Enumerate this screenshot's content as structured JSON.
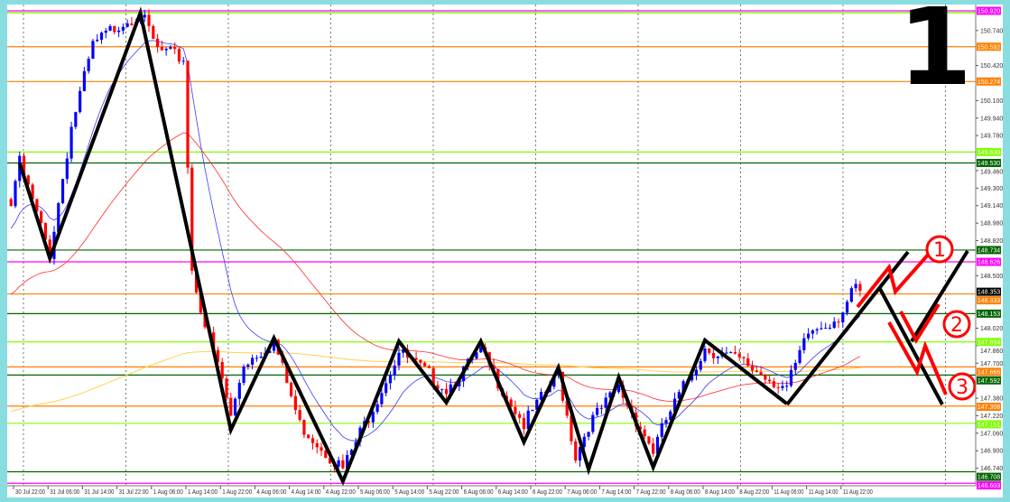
{
  "chart_data": {
    "type": "candlestick",
    "timeframe_label": "1",
    "colors": {
      "bull": "#0000ff",
      "bear": "#ff0000",
      "fast_ma": "#3a3aff",
      "slow_ma": "#ff2a2a",
      "long_ma": "#ffd24a",
      "zigzag": "#000000",
      "annotation": "#ff0000"
    },
    "ylim": [
      146.603,
      150.92
    ],
    "y_ticks": [
      "150.740",
      "150.420",
      "150.100",
      "149.940",
      "149.780",
      "149.460",
      "149.300",
      "149.140",
      "148.980",
      "148.820",
      "148.500",
      "148.020",
      "147.860",
      "147.700",
      "147.380",
      "147.220",
      "147.060",
      "146.900",
      "146.740"
    ],
    "x_ticks": [
      "30 Jul 22:00",
      "31 Jul 06:00",
      "31 Jul 14:00",
      "31 Jul 22:00",
      "1 Aug 06:00",
      "1 Aug 14:00",
      "1 Aug 22:00",
      "4 Aug 06:00",
      "4 Aug 14:00",
      "4 Aug 22:00",
      "5 Aug 06:00",
      "5 Aug 14:00",
      "5 Aug 22:00",
      "6 Aug 06:00",
      "6 Aug 14:00",
      "6 Aug 22:00",
      "7 Aug 06:00",
      "7 Aug 14:00",
      "7 Aug 22:00",
      "8 Aug 06:00",
      "8 Aug 14:00",
      "8 Aug 22:00",
      "11 Aug 06:00",
      "11 Aug 14:00",
      "11 Aug 22:00"
    ],
    "levels": [
      {
        "price": 150.92,
        "label": "150.920",
        "color": "#ff00ff"
      },
      {
        "price": 150.592,
        "label": "150.592",
        "color": "#ff8000"
      },
      {
        "price": 150.274,
        "label": "150.274",
        "color": "#ff8000"
      },
      {
        "price": 149.63,
        "label": "149.630",
        "color": "#80ff00"
      },
      {
        "price": 149.53,
        "label": "149.530",
        "color": "#006400"
      },
      {
        "price": 148.734,
        "label": "148.734",
        "color": "#006400"
      },
      {
        "price": 148.626,
        "label": "148.626",
        "color": "#ff00ff"
      },
      {
        "price": 148.333,
        "label": "148.333",
        "color": "#ff8000"
      },
      {
        "price": 148.153,
        "label": "148.153",
        "color": "#006400"
      },
      {
        "price": 147.894,
        "label": "147.894",
        "color": "#80ff00"
      },
      {
        "price": 147.666,
        "label": "147.666",
        "color": "#ff8000"
      },
      {
        "price": 147.592,
        "label": "147.592",
        "color": "#006400"
      },
      {
        "price": 147.308,
        "label": "147.308",
        "color": "#ff8000"
      },
      {
        "price": 147.151,
        "label": "147.151",
        "color": "#80ff00"
      },
      {
        "price": 146.708,
        "label": "146.708",
        "color": "#006400"
      },
      {
        "price": 146.603,
        "label": "146.603",
        "color": "#ff00ff"
      }
    ],
    "current_price": {
      "price": 148.353,
      "label": "148.353",
      "color": "#000000"
    },
    "price_path": [
      [
        "30 Jul 21:00",
        149.2
      ],
      [
        "30 Jul 23:00",
        149.53
      ],
      [
        "31 Jul 06:00",
        148.7
      ],
      [
        "31 Jul 11:00",
        149.86
      ],
      [
        "31 Jul 16:00",
        150.6
      ],
      [
        "31 Jul 22:00",
        150.8
      ],
      [
        "1 Aug 03:00",
        150.9
      ],
      [
        "1 Aug 07:00",
        150.56
      ],
      [
        "1 Aug 13:00",
        150.48
      ],
      [
        "1 Aug 15:00",
        148.55
      ],
      [
        "1 Aug 18:00",
        148.05
      ],
      [
        "1 Aug 22:00",
        147.55
      ],
      [
        "4 Aug 00:00",
        147.2
      ],
      [
        "4 Aug 03:00",
        147.7
      ],
      [
        "4 Aug 10:00",
        147.9
      ],
      [
        "4 Aug 16:00",
        147.14
      ],
      [
        "5 Aug 02:00",
        146.73
      ],
      [
        "5 Aug 15:00",
        147.8
      ],
      [
        "6 Aug 02:00",
        147.47
      ],
      [
        "6 Aug 10:00",
        147.8
      ],
      [
        "6 Aug 20:00",
        147.14
      ],
      [
        "7 Aug 04:00",
        147.6
      ],
      [
        "7 Aug 08:00",
        146.85
      ],
      [
        "7 Aug 11:00",
        147.14
      ],
      [
        "7 Aug 18:00",
        147.47
      ],
      [
        "8 Aug 02:00",
        146.9
      ],
      [
        "8 Aug 05:00",
        147.18
      ],
      [
        "8 Aug 14:00",
        147.84
      ],
      [
        "8 Aug 22:00",
        147.72
      ],
      [
        "11 Aug 09:00",
        147.47
      ],
      [
        "11 Aug 14:00",
        147.97
      ],
      [
        "11 Aug 21:00",
        148.13
      ],
      [
        "12 Aug 01:00",
        148.38
      ],
      [
        "12 Aug 02:00",
        148.34
      ]
    ],
    "zigzag": [
      [
        "30 Jul 23:00",
        149.53
      ],
      [
        "31 Jul 06:00",
        148.66
      ],
      [
        "1 Aug 03:00",
        150.9
      ],
      [
        "4 Aug 00:00",
        147.09
      ],
      [
        "4 Aug 10:00",
        147.93
      ],
      [
        "5 Aug 02:00",
        146.62
      ],
      [
        "5 Aug 15:00",
        147.9
      ],
      [
        "6 Aug 02:00",
        147.34
      ],
      [
        "6 Aug 10:00",
        147.9
      ],
      [
        "6 Aug 20:00",
        146.98
      ],
      [
        "7 Aug 04:00",
        147.66
      ],
      [
        "7 Aug 11:00",
        146.73
      ],
      [
        "7 Aug 18:00",
        147.57
      ],
      [
        "8 Aug 02:00",
        146.75
      ],
      [
        "8 Aug 14:00",
        147.91
      ],
      [
        "11 Aug 09:00",
        147.33
      ]
    ],
    "scenario_labels": [
      "1",
      "2",
      "3"
    ]
  }
}
